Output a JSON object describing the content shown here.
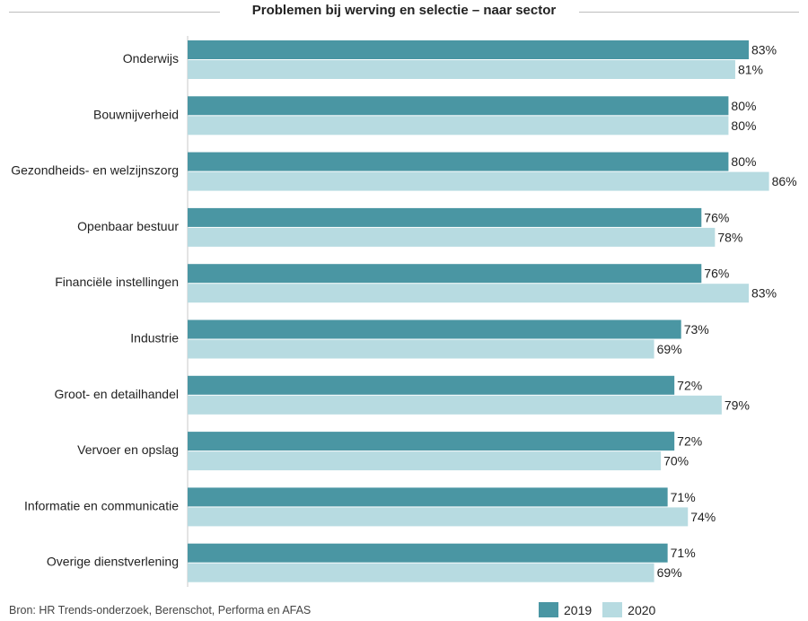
{
  "colors": {
    "series_2019": "#4a96a3",
    "series_2020": "#b7dbe1",
    "axis": "#c8c8c8"
  },
  "source_note": "Bron: HR Trends-onderzoek, Berenschot, Performa en AFAS",
  "chart_data": {
    "type": "bar",
    "orientation": "horizontal",
    "title": "Problemen bij werving en selectie – naar sector",
    "value_suffix": "%",
    "categories": [
      "Onderwijs",
      "Bouwnijverheid",
      "Gezondheids- en welzijnszorg",
      "Openbaar bestuur",
      "Financiële instellingen",
      "Industrie",
      "Groot- en  detailhandel",
      "Vervoer en opslag",
      "Informatie en communicatie",
      "Overige dienstverlening"
    ],
    "series": [
      {
        "name": "2019",
        "values": [
          83,
          80,
          80,
          76,
          76,
          73,
          72,
          72,
          71,
          71
        ]
      },
      {
        "name": "2020",
        "values": [
          81,
          80,
          86,
          78,
          83,
          69,
          79,
          70,
          74,
          69
        ]
      }
    ],
    "xlim": [
      0,
      90
    ],
    "grid": false,
    "legend_position": "bottom-right"
  }
}
